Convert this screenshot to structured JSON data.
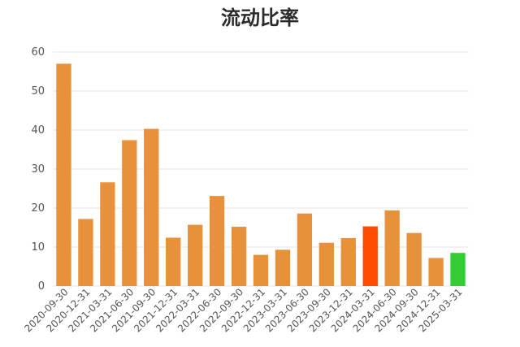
{
  "chart_data": {
    "type": "bar",
    "title": "流动比率",
    "xlabel": "",
    "ylabel": "",
    "ylim": [
      0,
      60
    ],
    "yticks": [
      0,
      10,
      20,
      30,
      40,
      50,
      60
    ],
    "grid": true,
    "categories": [
      "2020-09-30",
      "2020-12-31",
      "2021-03-31",
      "2021-06-30",
      "2021-09-30",
      "2021-12-31",
      "2022-03-31",
      "2022-06-30",
      "2022-09-30",
      "2022-12-31",
      "2023-03-31",
      "2023-06-30",
      "2023-09-30",
      "2023-12-31",
      "2024-03-31",
      "2024-06-30",
      "2024-09-30",
      "2024-12-31",
      "2025-03-31"
    ],
    "values": [
      57.0,
      17.2,
      26.6,
      37.4,
      40.3,
      12.4,
      15.7,
      23.1,
      15.2,
      8.0,
      9.3,
      18.6,
      11.1,
      12.3,
      15.3,
      19.4,
      13.6,
      7.2,
      8.5
    ],
    "colors": {
      "default": "#E8913A",
      "highlight_index_14": "#FF4A00",
      "highlight_index_18": "#33CC33"
    }
  }
}
